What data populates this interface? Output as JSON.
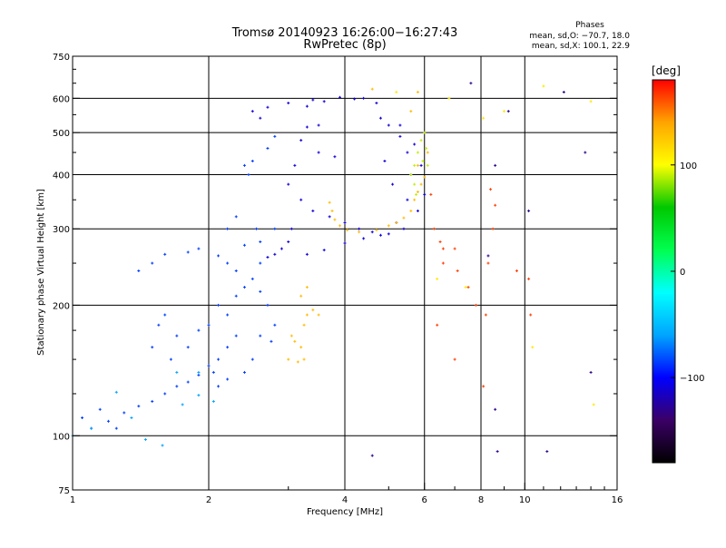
{
  "chart_data": {
    "type": "scatter",
    "title": "Tromsø 20140923 16:26:00−16:27:43",
    "subtitle": "RwPretec (8p)",
    "stats": {
      "heading": "Phases",
      "line1": "mean, sd,O: −70.7, 18.0",
      "line2": "mean, sd,X: 100.1, 22.9"
    },
    "xlabel": "Frequency [MHz]",
    "ylabel": "Stationary phase Virtual Height [km]",
    "xscale": "log",
    "yscale": "log",
    "xlim": [
      1,
      16
    ],
    "ylim": [
      75,
      750
    ],
    "xticks": [
      1,
      2,
      4,
      6,
      8,
      10,
      16
    ],
    "xtick_labels": [
      "1",
      "2",
      "4",
      "6",
      "8",
      "10",
      "16"
    ],
    "yticks": [
      75,
      100,
      200,
      300,
      400,
      500,
      600,
      750
    ],
    "ytick_labels": [
      "75",
      "100",
      "200",
      "300",
      "400",
      "500",
      "600",
      "750"
    ],
    "grid": true,
    "colorbar": {
      "label": "[deg]",
      "range": [
        -180,
        180
      ],
      "ticks": [
        100,
        0,
        -100
      ],
      "tick_labels": [
        "100",
        "0",
        "−100"
      ],
      "colors": [
        "#000000",
        "#3b0066",
        "#0000ff",
        "#00a5ff",
        "#00ffff",
        "#00ff50",
        "#00c800",
        "#ffff00",
        "#ffa500",
        "#ff0000"
      ]
    },
    "series": [
      {
        "phase": -110,
        "points": [
          [
            2.5,
            560
          ],
          [
            2.7,
            572
          ],
          [
            3.0,
            585
          ],
          [
            3.4,
            595
          ],
          [
            3.9,
            603
          ],
          [
            4.4,
            600
          ],
          [
            4.7,
            585
          ],
          [
            2.6,
            540
          ],
          [
            3.3,
            575
          ],
          [
            3.6,
            590
          ],
          [
            4.2,
            598
          ],
          [
            3.5,
            520
          ],
          [
            3.3,
            515
          ],
          [
            3.2,
            480
          ],
          [
            3.5,
            450
          ],
          [
            3.8,
            440
          ],
          [
            3.1,
            420
          ],
          [
            3.0,
            380
          ],
          [
            3.2,
            350
          ],
          [
            3.4,
            330
          ],
          [
            3.7,
            320
          ],
          [
            4.0,
            310
          ],
          [
            4.3,
            300
          ],
          [
            4.6,
            295
          ],
          [
            5.0,
            292
          ],
          [
            5.4,
            300
          ],
          [
            5.8,
            330
          ],
          [
            6.0,
            360
          ],
          [
            5.9,
            420
          ],
          [
            5.7,
            470
          ],
          [
            5.3,
            520
          ],
          [
            4.8,
            540
          ],
          [
            3.05,
            300
          ],
          [
            3.0,
            280
          ],
          [
            2.9,
            270
          ],
          [
            2.8,
            262
          ],
          [
            2.7,
            258
          ],
          [
            3.3,
            262
          ],
          [
            3.6,
            268
          ],
          [
            4.0,
            278
          ],
          [
            4.4,
            285
          ],
          [
            4.8,
            290
          ],
          [
            5.2,
            310
          ],
          [
            5.5,
            350
          ],
          [
            5.6,
            400
          ],
          [
            5.5,
            450
          ],
          [
            5.3,
            490
          ],
          [
            4.9,
            430
          ],
          [
            5.1,
            380
          ],
          [
            5.0,
            520
          ]
        ]
      },
      {
        "phase": -85,
        "points": [
          [
            1.3,
            113
          ],
          [
            1.4,
            117
          ],
          [
            1.5,
            120
          ],
          [
            1.6,
            125
          ],
          [
            1.7,
            130
          ],
          [
            1.8,
            133
          ],
          [
            1.9,
            138
          ],
          [
            2.0,
            145
          ],
          [
            2.1,
            150
          ],
          [
            2.2,
            160
          ],
          [
            2.3,
            170
          ],
          [
            1.5,
            160
          ],
          [
            1.55,
            180
          ],
          [
            1.6,
            190
          ],
          [
            1.7,
            170
          ],
          [
            1.65,
            150
          ],
          [
            1.8,
            160
          ],
          [
            1.9,
            175
          ],
          [
            2.0,
            180
          ],
          [
            2.1,
            200
          ],
          [
            2.2,
            190
          ],
          [
            2.3,
            210
          ],
          [
            2.4,
            220
          ],
          [
            2.5,
            230
          ],
          [
            2.6,
            215
          ],
          [
            2.7,
            200
          ],
          [
            2.8,
            180
          ],
          [
            2.75,
            165
          ],
          [
            2.6,
            170
          ],
          [
            2.5,
            150
          ],
          [
            2.4,
            140
          ],
          [
            2.2,
            135
          ],
          [
            2.1,
            130
          ],
          [
            2.05,
            140
          ],
          [
            2.3,
            240
          ],
          [
            2.2,
            250
          ],
          [
            2.1,
            260
          ],
          [
            1.8,
            265
          ],
          [
            1.6,
            262
          ],
          [
            1.5,
            250
          ],
          [
            1.4,
            240
          ],
          [
            1.9,
            270
          ],
          [
            2.4,
            275
          ],
          [
            2.6,
            280
          ],
          [
            2.8,
            300
          ],
          [
            2.45,
            400
          ],
          [
            2.4,
            420
          ],
          [
            2.5,
            430
          ],
          [
            2.7,
            460
          ],
          [
            2.8,
            490
          ],
          [
            1.1,
            104
          ],
          [
            1.05,
            110
          ],
          [
            1.15,
            115
          ],
          [
            1.2,
            108
          ],
          [
            1.25,
            104
          ],
          [
            2.6,
            250
          ],
          [
            2.55,
            300
          ],
          [
            2.2,
            300
          ],
          [
            2.3,
            320
          ]
        ]
      },
      {
        "phase": 130,
        "points": [
          [
            3.7,
            345
          ],
          [
            3.75,
            330
          ],
          [
            3.8,
            315
          ],
          [
            3.9,
            305
          ],
          [
            4.05,
            298
          ],
          [
            4.3,
            295
          ],
          [
            4.7,
            298
          ],
          [
            5.0,
            305
          ],
          [
            5.2,
            310
          ],
          [
            5.4,
            318
          ],
          [
            5.6,
            330
          ],
          [
            5.7,
            350
          ],
          [
            5.8,
            365
          ],
          [
            5.9,
            380
          ],
          [
            6.0,
            395
          ],
          [
            5.8,
            420
          ],
          [
            3.05,
            170
          ],
          [
            3.1,
            165
          ],
          [
            3.2,
            160
          ],
          [
            3.25,
            150
          ],
          [
            3.15,
            148
          ],
          [
            3.0,
            150
          ],
          [
            3.25,
            180
          ],
          [
            3.3,
            190
          ],
          [
            3.2,
            210
          ],
          [
            3.3,
            220
          ],
          [
            3.4,
            195
          ],
          [
            3.5,
            190
          ],
          [
            5.6,
            560
          ],
          [
            5.8,
            620
          ],
          [
            4.6,
            630
          ],
          [
            6.1,
            450
          ]
        ]
      },
      {
        "phase": 90,
        "points": [
          [
            5.6,
            400
          ],
          [
            5.7,
            420
          ],
          [
            5.8,
            450
          ],
          [
            5.9,
            480
          ],
          [
            6.0,
            500
          ],
          [
            6.05,
            460
          ],
          [
            5.95,
            430
          ],
          [
            5.7,
            380
          ],
          [
            5.75,
            360
          ],
          [
            6.1,
            420
          ]
        ]
      },
      {
        "phase": 165,
        "points": [
          [
            6.2,
            360
          ],
          [
            6.3,
            300
          ],
          [
            6.5,
            280
          ],
          [
            6.6,
            270
          ],
          [
            7.1,
            240
          ],
          [
            7.5,
            220
          ],
          [
            8.3,
            250
          ],
          [
            8.5,
            300
          ],
          [
            8.6,
            340
          ],
          [
            8.4,
            370
          ],
          [
            7.8,
            200
          ],
          [
            8.2,
            190
          ],
          [
            9.6,
            240
          ],
          [
            10.2,
            230
          ],
          [
            10.3,
            190
          ],
          [
            6.4,
            180
          ],
          [
            7.0,
            150
          ],
          [
            8.1,
            130
          ],
          [
            6.6,
            250
          ],
          [
            7.0,
            270
          ]
        ]
      },
      {
        "phase": 110,
        "points": [
          [
            5.2,
            620
          ],
          [
            6.8,
            600
          ],
          [
            8.1,
            540
          ],
          [
            9.0,
            560
          ],
          [
            14.0,
            590
          ],
          [
            6.4,
            230
          ],
          [
            7.4,
            220
          ],
          [
            10.4,
            160
          ],
          [
            14.2,
            118
          ],
          [
            11.0,
            640
          ]
        ]
      },
      {
        "phase": -130,
        "points": [
          [
            4.6,
            90
          ],
          [
            8.7,
            92
          ],
          [
            11.2,
            92
          ],
          [
            8.6,
            115
          ],
          [
            9.2,
            560
          ],
          [
            12.2,
            620
          ],
          [
            13.6,
            450
          ],
          [
            14.0,
            140
          ],
          [
            8.3,
            260
          ],
          [
            10.2,
            330
          ],
          [
            8.6,
            420
          ],
          [
            7.6,
            650
          ]
        ]
      },
      {
        "phase": -60,
        "points": [
          [
            1.7,
            140
          ],
          [
            1.9,
            140
          ],
          [
            2.05,
            120
          ],
          [
            1.35,
            110
          ],
          [
            1.25,
            126
          ],
          [
            1.1,
            104
          ],
          [
            1.0,
            100
          ],
          [
            1.45,
            98
          ],
          [
            1.58,
            95
          ],
          [
            1.9,
            124
          ],
          [
            1.75,
            118
          ]
        ]
      }
    ]
  }
}
